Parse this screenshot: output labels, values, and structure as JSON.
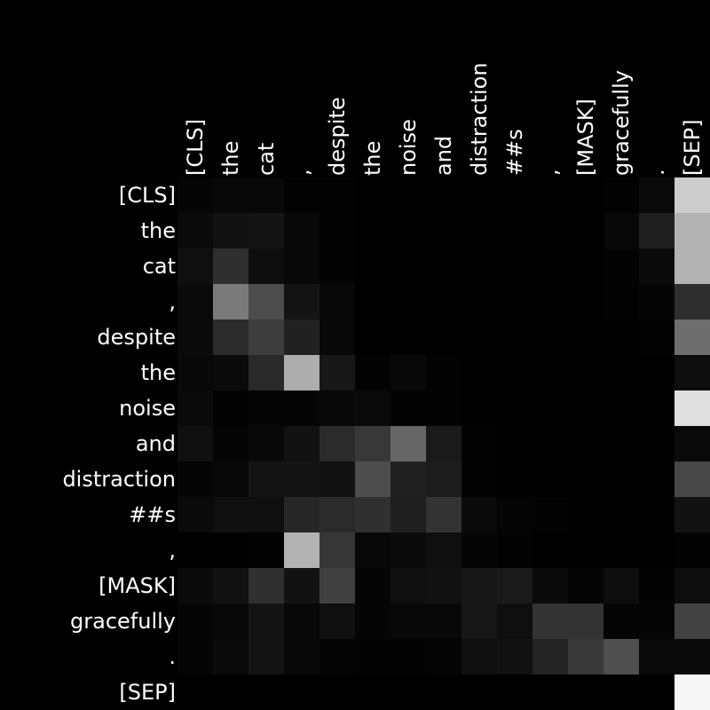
{
  "chart_data": {
    "type": "heatmap",
    "tokens": [
      "[CLS]",
      "the",
      "cat",
      ",",
      "despite",
      "the",
      "noise",
      "and",
      "distraction",
      "##s",
      ",",
      "[MASK]",
      "gracefully",
      ".",
      "[SEP]"
    ],
    "x_labels": [
      "[CLS]",
      "the",
      "cat",
      ",",
      "despite",
      "the",
      "noise",
      "and",
      "distraction",
      "##s",
      ",",
      "[MASK]",
      "gracefully",
      ".",
      "[SEP]"
    ],
    "y_labels": [
      "[CLS]",
      "the",
      "cat",
      ",",
      "despite",
      "the",
      "noise",
      "and",
      "distraction",
      "##s",
      ",",
      "[MASK]",
      "gracefully",
      ".",
      "[SEP]"
    ],
    "colormap": "grayscale (black = 0, white = max)",
    "values": [
      [
        0.02,
        0.03,
        0.03,
        0.01,
        0.01,
        0.0,
        0.0,
        0.0,
        0.0,
        0.0,
        0.0,
        0.0,
        0.01,
        0.04,
        0.8
      ],
      [
        0.04,
        0.07,
        0.08,
        0.03,
        0.01,
        0.0,
        0.0,
        0.0,
        0.0,
        0.0,
        0.0,
        0.0,
        0.03,
        0.12,
        0.7
      ],
      [
        0.06,
        0.18,
        0.05,
        0.03,
        0.01,
        0.0,
        0.0,
        0.0,
        0.0,
        0.0,
        0.0,
        0.0,
        0.01,
        0.04,
        0.7
      ],
      [
        0.04,
        0.48,
        0.3,
        0.08,
        0.03,
        0.0,
        0.0,
        0.0,
        0.0,
        0.0,
        0.0,
        0.0,
        0.01,
        0.02,
        0.18
      ],
      [
        0.04,
        0.17,
        0.24,
        0.13,
        0.03,
        0.0,
        0.0,
        0.0,
        0.0,
        0.0,
        0.0,
        0.0,
        0.0,
        0.01,
        0.43
      ],
      [
        0.03,
        0.04,
        0.16,
        0.68,
        0.09,
        0.01,
        0.03,
        0.01,
        0.0,
        0.0,
        0.0,
        0.0,
        0.0,
        0.0,
        0.05
      ],
      [
        0.04,
        0.01,
        0.02,
        0.02,
        0.03,
        0.04,
        0.01,
        0.01,
        0.0,
        0.0,
        0.0,
        0.0,
        0.0,
        0.0,
        0.88
      ],
      [
        0.06,
        0.02,
        0.03,
        0.07,
        0.17,
        0.22,
        0.4,
        0.1,
        0.01,
        0.0,
        0.0,
        0.0,
        0.0,
        0.0,
        0.04
      ],
      [
        0.02,
        0.03,
        0.08,
        0.08,
        0.07,
        0.3,
        0.13,
        0.11,
        0.01,
        0.0,
        0.0,
        0.0,
        0.0,
        0.0,
        0.28
      ],
      [
        0.04,
        0.06,
        0.06,
        0.15,
        0.17,
        0.19,
        0.12,
        0.2,
        0.04,
        0.02,
        0.01,
        0.0,
        0.0,
        0.0,
        0.07
      ],
      [
        0.0,
        0.0,
        0.01,
        0.7,
        0.21,
        0.03,
        0.04,
        0.06,
        0.02,
        0.01,
        0.0,
        0.0,
        0.0,
        0.0,
        0.01
      ],
      [
        0.04,
        0.07,
        0.19,
        0.07,
        0.25,
        0.02,
        0.06,
        0.07,
        0.09,
        0.1,
        0.04,
        0.02,
        0.05,
        0.01,
        0.05
      ],
      [
        0.02,
        0.03,
        0.08,
        0.03,
        0.06,
        0.02,
        0.03,
        0.03,
        0.09,
        0.06,
        0.2,
        0.2,
        0.02,
        0.02,
        0.26
      ],
      [
        0.02,
        0.04,
        0.08,
        0.03,
        0.02,
        0.01,
        0.01,
        0.02,
        0.06,
        0.07,
        0.14,
        0.22,
        0.31,
        0.04,
        0.04
      ],
      [
        0.0,
        0.0,
        0.0,
        0.0,
        0.0,
        0.0,
        0.0,
        0.0,
        0.0,
        0.0,
        0.0,
        0.0,
        0.0,
        0.0,
        0.97
      ]
    ]
  }
}
